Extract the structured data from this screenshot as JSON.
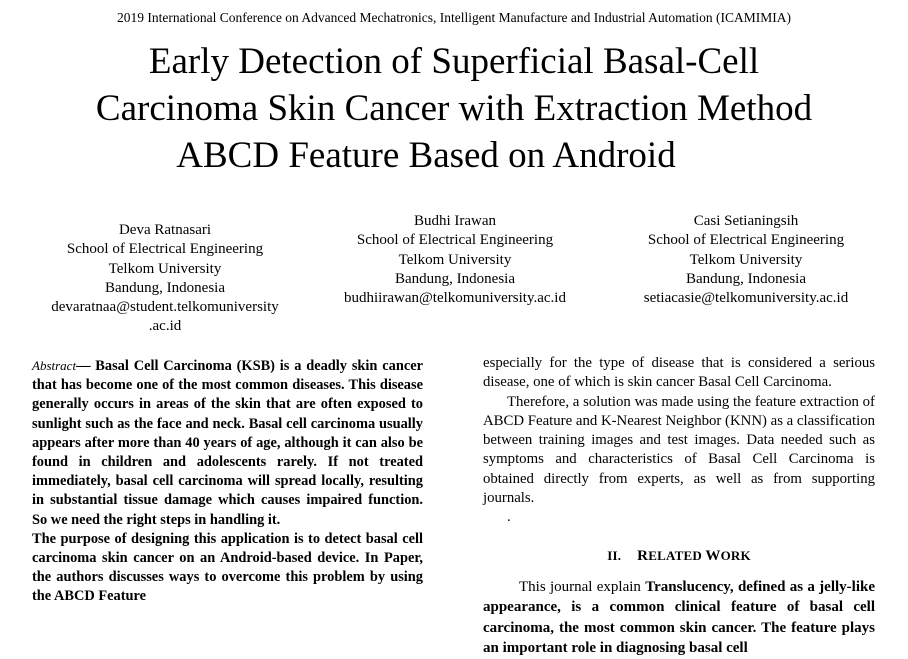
{
  "conference": "2019 International Conference on Advanced Mechatronics, Intelligent Manufacture and Industrial Automation (ICAMIMIA)",
  "title_lines": [
    "Early Detection of Superficial Basal-Cell",
    "Carcinoma Skin Cancer with Extraction Method",
    "ABCD Feature Based on Android"
  ],
  "authors": [
    {
      "name": "Deva Ratnasari",
      "school": "School of  Electrical Engineering",
      "university": "Telkom University",
      "location": "Bandung, Indonesia",
      "email_line1": "devaratnaa@student.telkomuniversity",
      "email_line2": ".ac.id"
    },
    {
      "name": "Budhi Irawan",
      "school": "School of Electrical Engineering",
      "university": "Telkom University",
      "location": "Bandung, Indonesia",
      "email_line1": "budhiirawan@telkomuniversity.ac.id"
    },
    {
      "name": "Casi Setianingsih",
      "school": "School of Electrical Engineering",
      "university": "Telkom University",
      "location": "Bandung, Indonesia",
      "email_line1": "setiacasie@telkomuniversity.ac.id"
    }
  ],
  "abstract": {
    "label": "Abstract",
    "dash": "— ",
    "para1": "Basal Cell Carcinoma (KSB) is a deadly skin cancer that has become one of the most common diseases. This disease generally occurs in areas of the skin that are often exposed to sunlight such as the face and neck. Basal cell carcinoma usually appears after more than 40 years of age, although it can also be found in children and adolescents rarely. If not treated immediately, basal cell carcinoma will spread locally, resulting in substantial tissue damage which causes impaired function. So we need the right steps in handling it.",
    "para2": "The purpose of designing this application is to detect basal cell carcinoma skin cancer on an Android-based device. In Paper, the authors discusses ways to overcome this problem by using the ABCD Feature"
  },
  "right_column": {
    "para1": "especially for the type of disease that is considered a serious disease, one of which is skin cancer Basal Cell Carcinoma.",
    "para2": "Therefore, a solution was made using the feature extraction of ABCD Feature and K-Nearest Neighbor (KNN) as a classification between training images and test images. Data needed such as symptoms and characteristics of Basal Cell Carcinoma is obtained directly from experts, as well as from supporting journals.",
    "stray_dot": ".",
    "section_number": "II.",
    "section_initial_1": "R",
    "section_rest_1": "ELATED",
    "section_initial_2": "W",
    "section_rest_2": "ORK",
    "related_intro": "This journal explain ",
    "related_bold_1": "Translucency, defined as a jelly-like appearance, is",
    "related_bold_2": " a common clinical feature of basal cell carcinoma, the most common skin cancer. The feature plays an important role in diagnosing basal cell"
  }
}
